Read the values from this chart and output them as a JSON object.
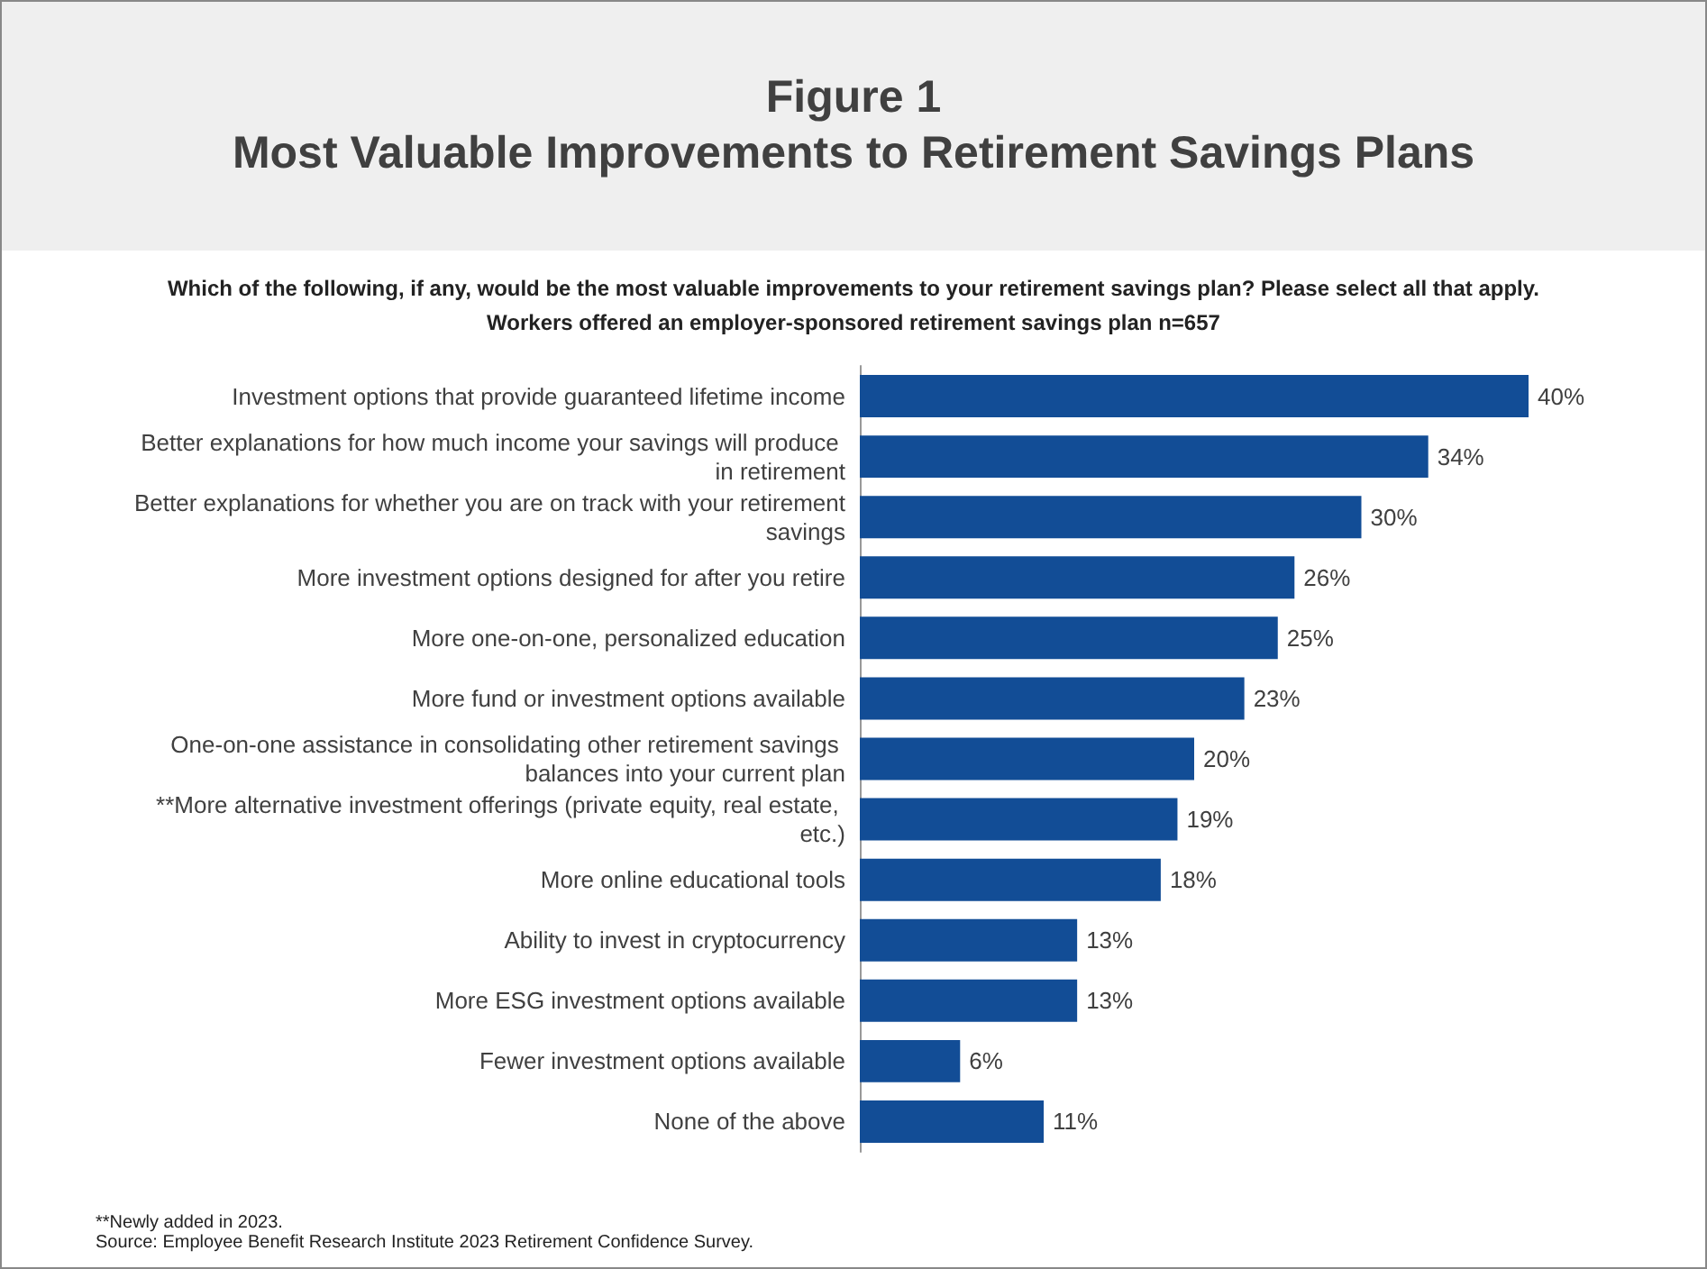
{
  "chart_data": {
    "type": "bar",
    "orientation": "horizontal",
    "title": "Figure 1",
    "subtitle": "Most Valuable Improvements to Retirement Savings Plans",
    "annotations": [
      "Which of the following, if any, would be the most valuable improvements to your retirement savings plan? Please select all that apply.",
      "Workers offered an employer-sponsored retirement savings plan n=657",
      "**Newly added in 2023.",
      "Source: Employee Benefit Research Institute 2023 Retirement Confidence Survey."
    ],
    "categories": [
      "Investment options that provide guaranteed lifetime income",
      "Better explanations for how much income your savings will produce in retirement",
      "Better explanations for whether you are on track with your retirement savings",
      "More investment options designed for after you retire",
      "More one-on-one, personalized education",
      "More fund or investment options available",
      "One-on-one assistance in consolidating other retirement savings balances into your current plan",
      "**More alternative investment offerings (private equity, real estate, etc.)",
      "More online educational tools",
      "Ability to invest in cryptocurrency",
      "More ESG investment options available",
      "Fewer investment options available",
      "None of the above"
    ],
    "values": [
      40,
      34,
      30,
      26,
      25,
      23,
      20,
      19,
      18,
      13,
      13,
      6,
      11
    ],
    "value_labels": [
      "40%",
      "34%",
      "30%",
      "26%",
      "25%",
      "23%",
      "20%",
      "19%",
      "18%",
      "13%",
      "13%",
      "6%",
      "11%"
    ],
    "color": "#124d96"
  }
}
